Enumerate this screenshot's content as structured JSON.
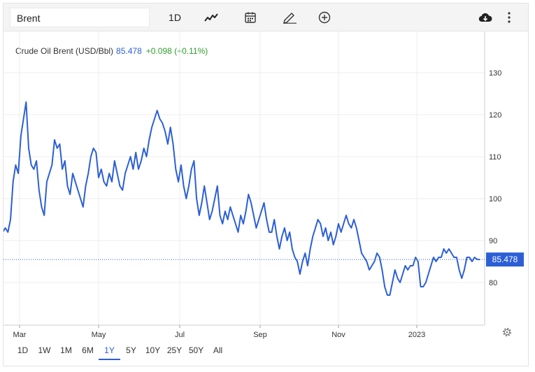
{
  "toolbar": {
    "search_value": "Brent",
    "period": "1D",
    "icons": [
      "line-chart-icon",
      "calendar-icon",
      "pencil-icon",
      "plus-circle-icon",
      "cloud-download-icon",
      "more-vertical-icon"
    ]
  },
  "quote": {
    "name": "Crude Oil Brent (USD/Bbl)",
    "last": "85.478",
    "change": "+0.098 (+0.11%)"
  },
  "ranges": [
    "1D",
    "1W",
    "1M",
    "6M",
    "1Y",
    "5Y",
    "10Y",
    "25Y",
    "50Y",
    "All"
  ],
  "active_range": "1Y",
  "colors": {
    "line": "#2c5fd6",
    "badge": "#2c5fd6",
    "change": "#2e9e2e",
    "grid": "#eeeeee"
  },
  "chart_data": {
    "type": "line",
    "title": "",
    "xlabel": "",
    "ylabel": "",
    "ylim": [
      72,
      140
    ],
    "y_ticks": [
      80,
      90,
      100,
      110,
      120,
      130
    ],
    "x_ticks": [
      {
        "label": "Mar",
        "x": "2022-03-01"
      },
      {
        "label": "May",
        "x": "2022-05-01"
      },
      {
        "label": "Jul",
        "x": "2022-07-01"
      },
      {
        "label": "Sep",
        "x": "2022-09-01"
      },
      {
        "label": "Nov",
        "x": "2022-11-01"
      },
      {
        "label": "2023",
        "x": "2023-01-01"
      }
    ],
    "last_value_label": "85.478",
    "grid": true,
    "series": [
      {
        "points": [
          [
            "2022-02-10",
            93
          ],
          [
            "2022-02-12",
            94
          ],
          [
            "2022-02-14",
            91
          ],
          [
            "2022-02-16",
            92
          ],
          [
            "2022-02-18",
            93
          ],
          [
            "2022-02-20",
            92
          ],
          [
            "2022-02-22",
            95
          ],
          [
            "2022-02-24",
            104
          ],
          [
            "2022-02-26",
            108
          ],
          [
            "2022-02-28",
            106
          ],
          [
            "2022-03-02",
            115
          ],
          [
            "2022-03-04",
            119
          ],
          [
            "2022-03-06",
            123
          ],
          [
            "2022-03-08",
            112
          ],
          [
            "2022-03-10",
            108
          ],
          [
            "2022-03-12",
            107
          ],
          [
            "2022-03-14",
            109
          ],
          [
            "2022-03-16",
            102
          ],
          [
            "2022-03-18",
            98
          ],
          [
            "2022-03-20",
            96
          ],
          [
            "2022-03-22",
            104
          ],
          [
            "2022-03-24",
            106
          ],
          [
            "2022-03-26",
            108
          ],
          [
            "2022-03-28",
            114
          ],
          [
            "2022-03-30",
            112
          ],
          [
            "2022-04-01",
            113
          ],
          [
            "2022-04-03",
            107
          ],
          [
            "2022-04-05",
            109
          ],
          [
            "2022-04-07",
            103
          ],
          [
            "2022-04-09",
            101
          ],
          [
            "2022-04-11",
            106
          ],
          [
            "2022-04-13",
            104
          ],
          [
            "2022-04-15",
            102
          ],
          [
            "2022-04-17",
            100
          ],
          [
            "2022-04-19",
            98
          ],
          [
            "2022-04-21",
            103
          ],
          [
            "2022-04-23",
            106
          ],
          [
            "2022-04-25",
            110
          ],
          [
            "2022-04-27",
            112
          ],
          [
            "2022-04-29",
            111
          ],
          [
            "2022-05-01",
            105
          ],
          [
            "2022-05-03",
            107
          ],
          [
            "2022-05-05",
            104
          ],
          [
            "2022-05-07",
            103
          ],
          [
            "2022-05-09",
            106
          ],
          [
            "2022-05-11",
            104
          ],
          [
            "2022-05-13",
            109
          ],
          [
            "2022-05-15",
            106
          ],
          [
            "2022-05-17",
            103
          ],
          [
            "2022-05-19",
            102
          ],
          [
            "2022-05-21",
            106
          ],
          [
            "2022-05-23",
            108
          ],
          [
            "2022-05-25",
            110
          ],
          [
            "2022-05-27",
            107
          ],
          [
            "2022-05-29",
            111
          ],
          [
            "2022-05-31",
            107
          ],
          [
            "2022-06-02",
            109
          ],
          [
            "2022-06-04",
            112
          ],
          [
            "2022-06-06",
            110
          ],
          [
            "2022-06-08",
            114
          ],
          [
            "2022-06-10",
            117
          ],
          [
            "2022-06-12",
            119
          ],
          [
            "2022-06-14",
            121
          ],
          [
            "2022-06-16",
            119
          ],
          [
            "2022-06-18",
            118
          ],
          [
            "2022-06-20",
            116
          ],
          [
            "2022-06-22",
            113
          ],
          [
            "2022-06-24",
            117
          ],
          [
            "2022-06-26",
            113
          ],
          [
            "2022-06-28",
            107
          ],
          [
            "2022-06-30",
            104
          ],
          [
            "2022-07-02",
            108
          ],
          [
            "2022-07-04",
            103
          ],
          [
            "2022-07-06",
            100
          ],
          [
            "2022-07-08",
            103
          ],
          [
            "2022-07-10",
            107
          ],
          [
            "2022-07-12",
            109
          ],
          [
            "2022-07-14",
            100
          ],
          [
            "2022-07-16",
            96
          ],
          [
            "2022-07-18",
            99
          ],
          [
            "2022-07-20",
            103
          ],
          [
            "2022-07-22",
            99
          ],
          [
            "2022-07-24",
            95
          ],
          [
            "2022-07-26",
            97
          ],
          [
            "2022-07-28",
            100
          ],
          [
            "2022-07-30",
            103
          ],
          [
            "2022-08-01",
            96
          ],
          [
            "2022-08-03",
            94
          ],
          [
            "2022-08-05",
            97
          ],
          [
            "2022-08-07",
            95
          ],
          [
            "2022-08-09",
            98
          ],
          [
            "2022-08-11",
            96
          ],
          [
            "2022-08-13",
            94
          ],
          [
            "2022-08-15",
            92
          ],
          [
            "2022-08-17",
            96
          ],
          [
            "2022-08-19",
            94
          ],
          [
            "2022-08-21",
            97
          ],
          [
            "2022-08-23",
            101
          ],
          [
            "2022-08-25",
            99
          ],
          [
            "2022-08-27",
            96
          ],
          [
            "2022-08-29",
            93
          ],
          [
            "2022-08-31",
            95
          ],
          [
            "2022-09-02",
            97
          ],
          [
            "2022-09-04",
            99
          ],
          [
            "2022-09-06",
            95
          ],
          [
            "2022-09-08",
            92
          ],
          [
            "2022-09-10",
            92
          ],
          [
            "2022-09-12",
            95
          ],
          [
            "2022-09-14",
            91
          ],
          [
            "2022-09-16",
            88
          ],
          [
            "2022-09-18",
            91
          ],
          [
            "2022-09-20",
            93
          ],
          [
            "2022-09-22",
            90
          ],
          [
            "2022-09-24",
            92
          ],
          [
            "2022-09-26",
            88
          ],
          [
            "2022-09-28",
            86
          ],
          [
            "2022-09-30",
            85
          ],
          [
            "2022-10-02",
            82
          ],
          [
            "2022-10-04",
            85
          ],
          [
            "2022-10-06",
            87
          ],
          [
            "2022-10-08",
            84
          ],
          [
            "2022-10-10",
            88
          ],
          [
            "2022-10-12",
            91
          ],
          [
            "2022-10-14",
            93
          ],
          [
            "2022-10-16",
            95
          ],
          [
            "2022-10-18",
            94
          ],
          [
            "2022-10-20",
            91
          ],
          [
            "2022-10-22",
            93
          ],
          [
            "2022-10-24",
            90
          ],
          [
            "2022-10-26",
            92
          ],
          [
            "2022-10-28",
            89
          ],
          [
            "2022-10-30",
            91
          ],
          [
            "2022-11-01",
            94
          ],
          [
            "2022-11-03",
            92
          ],
          [
            "2022-11-05",
            94
          ],
          [
            "2022-11-07",
            96
          ],
          [
            "2022-11-09",
            94
          ],
          [
            "2022-11-11",
            93
          ],
          [
            "2022-11-13",
            95
          ],
          [
            "2022-11-15",
            93
          ],
          [
            "2022-11-17",
            90
          ],
          [
            "2022-11-19",
            87
          ],
          [
            "2022-11-21",
            86
          ],
          [
            "2022-11-23",
            85
          ],
          [
            "2022-11-25",
            83
          ],
          [
            "2022-11-27",
            84
          ],
          [
            "2022-11-29",
            85
          ],
          [
            "2022-12-01",
            87
          ],
          [
            "2022-12-03",
            86
          ],
          [
            "2022-12-05",
            83
          ],
          [
            "2022-12-07",
            79
          ],
          [
            "2022-12-09",
            77
          ],
          [
            "2022-12-11",
            77
          ],
          [
            "2022-12-13",
            80
          ],
          [
            "2022-12-15",
            83
          ],
          [
            "2022-12-17",
            81
          ],
          [
            "2022-12-19",
            80
          ],
          [
            "2022-12-21",
            82
          ],
          [
            "2022-12-23",
            84
          ],
          [
            "2022-12-25",
            83
          ],
          [
            "2022-12-27",
            84
          ],
          [
            "2022-12-29",
            84
          ],
          [
            "2022-12-31",
            86
          ],
          [
            "2023-01-02",
            85
          ],
          [
            "2023-01-04",
            79
          ],
          [
            "2023-01-06",
            79
          ],
          [
            "2023-01-08",
            80
          ],
          [
            "2023-01-10",
            82
          ],
          [
            "2023-01-12",
            84
          ],
          [
            "2023-01-14",
            86
          ],
          [
            "2023-01-16",
            85
          ],
          [
            "2023-01-18",
            86
          ],
          [
            "2023-01-20",
            86
          ],
          [
            "2023-01-22",
            88
          ],
          [
            "2023-01-24",
            87
          ],
          [
            "2023-01-26",
            88
          ],
          [
            "2023-01-28",
            87
          ],
          [
            "2023-01-30",
            86
          ],
          [
            "2023-02-01",
            86
          ],
          [
            "2023-02-03",
            83
          ],
          [
            "2023-02-05",
            81
          ],
          [
            "2023-02-07",
            83
          ],
          [
            "2023-02-09",
            86
          ],
          [
            "2023-02-11",
            86
          ],
          [
            "2023-02-13",
            85
          ],
          [
            "2023-02-15",
            86
          ],
          [
            "2023-02-17",
            85.5
          ],
          [
            "2023-02-19",
            85.478
          ]
        ]
      }
    ]
  }
}
